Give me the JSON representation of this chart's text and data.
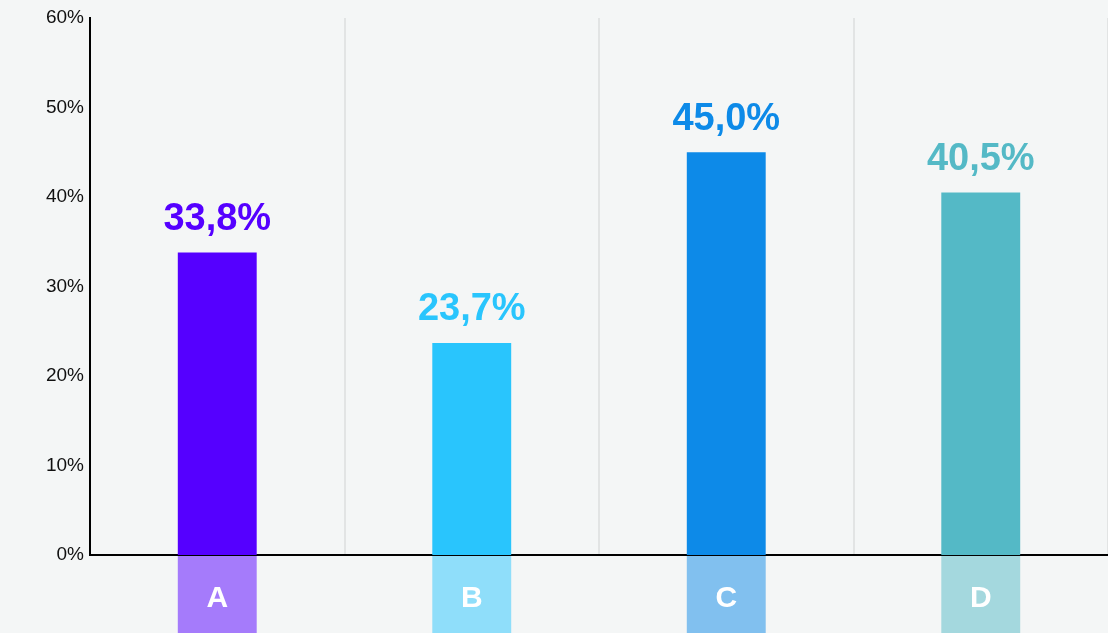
{
  "chart_data": {
    "type": "bar",
    "categories": [
      "A",
      "B",
      "C",
      "D"
    ],
    "values": [
      33.8,
      23.7,
      45.0,
      40.5
    ],
    "colors": [
      "#5500ff",
      "#29c5fd",
      "#0d8ae8",
      "#54b9c6"
    ],
    "value_labels": [
      "33,8%",
      "23,7%",
      "45,0%",
      "40,5%"
    ],
    "ylim": [
      0,
      60
    ],
    "yticks": [
      {
        "value": 0,
        "label": "0%"
      },
      {
        "value": 10,
        "label": "10%"
      },
      {
        "value": 20,
        "label": "20%"
      },
      {
        "value": 30,
        "label": "30%"
      },
      {
        "value": 40,
        "label": "40%"
      },
      {
        "value": 50,
        "label": "50%"
      },
      {
        "value": 60,
        "label": "60%"
      }
    ],
    "grid": "x",
    "legend": false
  }
}
